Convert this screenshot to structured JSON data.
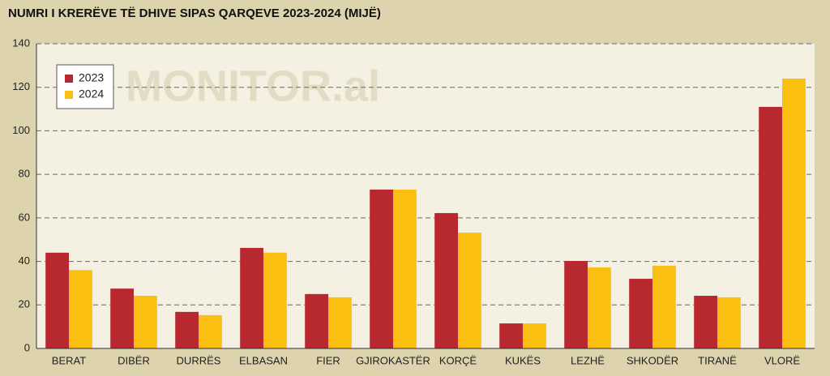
{
  "chart_data": {
    "type": "bar",
    "title": "NUMRI I KRERËVE TË DHIVE SIPAS QARQEVE 2023-2024 (MIJË)",
    "watermark": "MONITOR.al",
    "categories": [
      "BERAT",
      "DIBËR",
      "DURRËS",
      "ELBASAN",
      "FIER",
      "GJIROKASTËR",
      "KORÇË",
      "KUKËS",
      "LEZHË",
      "SHKODËR",
      "TIRANË",
      "VLORË"
    ],
    "series": [
      {
        "name": "2023",
        "color": "#b8282f",
        "values": [
          44,
          27.5,
          16.8,
          46.2,
          25,
          73,
          62.2,
          11.5,
          40.2,
          32,
          24.2,
          111
        ]
      },
      {
        "name": "2024",
        "color": "#fbbf12",
        "values": [
          36,
          24.2,
          15.3,
          44,
          23.5,
          73,
          53.2,
          11.5,
          37.2,
          38,
          23.5,
          124
        ]
      }
    ],
    "ylim": [
      0,
      140
    ],
    "yticks": [
      0,
      20,
      40,
      60,
      80,
      100,
      120,
      140
    ],
    "grid": true,
    "legend": "upper-left"
  }
}
